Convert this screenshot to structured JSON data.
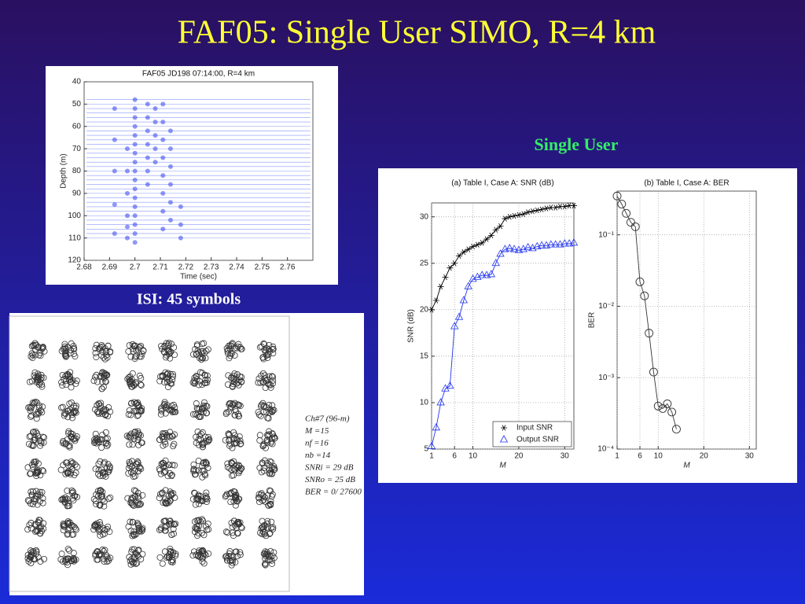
{
  "title": "FAF05: Single User SIMO, R=4 km",
  "captions": [
    "Single User",
    "ISI: 45 symbols"
  ],
  "chart_data": [
    {
      "type": "scatter",
      "title": "FAF05 JD198 07:14:00, R=4 km",
      "xlabel": "Time (sec)",
      "ylabel": "Depth (m)",
      "xlim": [
        2.68,
        2.77
      ],
      "xticks": [
        2.68,
        2.69,
        2.7,
        2.71,
        2.72,
        2.73,
        2.74,
        2.75,
        2.76
      ],
      "ylim": [
        120,
        40
      ],
      "yticks": [
        40,
        50,
        60,
        70,
        80,
        90,
        100,
        110,
        120
      ],
      "color": "#3344ee",
      "trace_depths": [
        48,
        50,
        52,
        54,
        56,
        58,
        60,
        62,
        64,
        66,
        68,
        70,
        72,
        74,
        76,
        78,
        80,
        82,
        84,
        86,
        88,
        90,
        92,
        94,
        96,
        98,
        100,
        102,
        104,
        106,
        108,
        110
      ],
      "x": [
        2.7,
        2.7,
        2.7,
        2.7,
        2.7,
        2.7,
        2.7,
        2.7,
        2.7,
        2.7,
        2.7,
        2.7,
        2.7,
        2.7,
        2.7,
        2.7,
        2.7,
        2.697,
        2.697,
        2.697,
        2.697,
        2.697,
        2.697,
        2.705,
        2.705,
        2.705,
        2.705,
        2.705,
        2.705,
        2.705,
        2.708,
        2.708,
        2.708,
        2.708,
        2.708,
        2.711,
        2.711,
        2.711,
        2.711,
        2.711,
        2.711,
        2.711,
        2.711,
        2.714,
        2.714,
        2.714,
        2.714,
        2.714,
        2.714,
        2.692,
        2.692,
        2.692,
        2.692,
        2.692,
        2.718,
        2.718,
        2.718
      ],
      "y": [
        48,
        52,
        56,
        60,
        64,
        68,
        72,
        76,
        80,
        84,
        88,
        92,
        96,
        100,
        104,
        108,
        112,
        70,
        80,
        90,
        100,
        105,
        110,
        50,
        56,
        62,
        68,
        74,
        80,
        86,
        52,
        58,
        64,
        70,
        76,
        50,
        58,
        66,
        74,
        82,
        90,
        98,
        106,
        62,
        70,
        78,
        86,
        94,
        102,
        52,
        66,
        80,
        95,
        108,
        96,
        104,
        110
      ]
    },
    {
      "type": "constellation",
      "color": "#333333",
      "x": [
        1,
        2,
        3,
        4,
        5,
        6,
        7,
        8,
        1,
        2,
        3,
        4,
        5,
        6,
        7,
        8,
        1,
        2,
        3,
        4,
        5,
        6,
        7,
        8,
        1,
        2,
        3,
        4,
        5,
        6,
        7,
        8,
        1,
        2,
        3,
        4,
        5,
        6,
        7,
        8,
        1,
        2,
        3,
        4,
        5,
        6,
        7,
        8,
        1,
        2,
        3,
        4,
        5,
        6,
        7,
        8,
        1,
        2,
        3,
        4,
        5,
        6,
        7,
        8
      ],
      "y": [
        1,
        1,
        1,
        1,
        1,
        1,
        1,
        1,
        2,
        2,
        2,
        2,
        2,
        2,
        2,
        2,
        3,
        3,
        3,
        3,
        3,
        3,
        3,
        3,
        4,
        4,
        4,
        4,
        4,
        4,
        4,
        4,
        5,
        5,
        5,
        5,
        5,
        5,
        5,
        5,
        6,
        6,
        6,
        6,
        6,
        6,
        6,
        6,
        7,
        7,
        7,
        7,
        7,
        7,
        7,
        7,
        8,
        8,
        8,
        8,
        8,
        8,
        8,
        8
      ],
      "annotations": [
        "Ch#7 (96-m)",
        "M =15",
        "nf =16",
        "nb =14",
        "SNRi = 29 dB",
        "SNRo = 25 dB",
        "BER = 0/ 27600"
      ]
    },
    {
      "type": "line",
      "title": "(a) Table I, Case A: SNR (dB)",
      "xlabel": "M",
      "ylabel": "SNR (dB)",
      "xlim": [
        1,
        32
      ],
      "xticks": [
        1,
        6,
        10,
        20,
        30
      ],
      "ylim": [
        5,
        31.5
      ],
      "yticks": [
        5,
        10,
        15,
        20,
        25,
        30
      ],
      "grid": true,
      "legend": "lower right",
      "x": [
        1,
        2,
        3,
        4,
        5,
        6,
        7,
        8,
        9,
        10,
        11,
        12,
        13,
        14,
        15,
        16,
        17,
        18,
        19,
        20,
        21,
        22,
        23,
        24,
        25,
        26,
        27,
        28,
        29,
        30,
        31,
        32
      ],
      "series": [
        {
          "name": "Input SNR",
          "color": "#000000",
          "marker": "asterisk",
          "values": [
            20,
            21,
            22.5,
            23.5,
            24.5,
            25,
            25.8,
            26.2,
            26.5,
            26.8,
            27,
            27.2,
            27.6,
            28,
            28.6,
            29,
            29.8,
            30,
            30.1,
            30.2,
            30.3,
            30.5,
            30.6,
            30.7,
            30.8,
            30.9,
            31,
            31,
            31.1,
            31.1,
            31.2,
            31.2
          ]
        },
        {
          "name": "Output SNR",
          "color": "#2233ee",
          "marker": "triangle",
          "values": [
            5.3,
            7.3,
            10,
            11.5,
            11.8,
            18.2,
            19.2,
            21,
            22.5,
            23.3,
            23.5,
            23.7,
            23.7,
            23.8,
            25,
            26,
            26.5,
            26.6,
            26.5,
            26.4,
            26.5,
            26.7,
            26.6,
            26.8,
            26.9,
            26.9,
            27,
            27,
            27,
            27.1,
            27.1,
            27.2
          ]
        }
      ]
    },
    {
      "type": "line",
      "title": "(b) Table I, Case A: BER",
      "xlabel": "M",
      "ylabel": "BER",
      "log_y": true,
      "xlim": [
        1,
        31.5
      ],
      "xticks": [
        1,
        6,
        10,
        20,
        30
      ],
      "ylim": [
        0.0001,
        0.41
      ],
      "yticks": [
        {
          "value": 0.0001,
          "label": "10⁻⁴"
        },
        {
          "value": 0.001,
          "label": "10⁻³"
        },
        {
          "value": 0.01,
          "label": "10⁻²"
        },
        {
          "value": 0.1,
          "label": "10⁻¹"
        }
      ],
      "grid": true,
      "x": [
        1,
        2,
        3,
        4,
        5,
        6,
        7,
        8,
        9,
        10,
        11,
        12,
        13,
        14
      ],
      "series": [
        {
          "name": "BER",
          "color": "#333333",
          "marker": "circle",
          "values": [
            0.35,
            0.27,
            0.2,
            0.15,
            0.13,
            0.022,
            0.014,
            0.0042,
            0.0012,
            0.0004,
            0.00037,
            0.00043,
            0.00033,
            0.00019
          ]
        }
      ]
    }
  ]
}
